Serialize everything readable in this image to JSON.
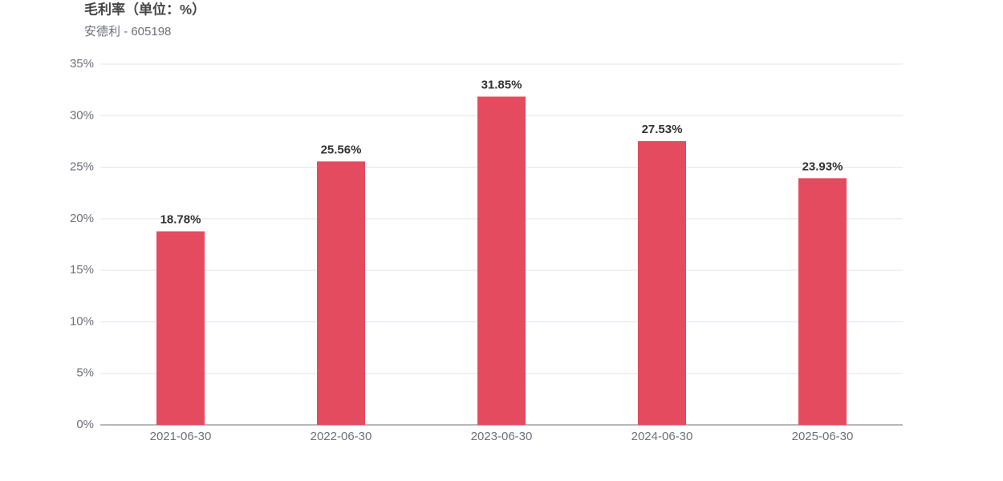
{
  "chart_data": {
    "type": "bar",
    "title": "毛利率（单位：%）",
    "subtitle": "安德利 - 605198",
    "categories": [
      "2021-06-30",
      "2022-06-30",
      "2023-06-30",
      "2024-06-30",
      "2025-06-30"
    ],
    "values": [
      18.78,
      25.56,
      31.85,
      27.53,
      23.93
    ],
    "value_labels": [
      "18.78%",
      "25.56%",
      "31.85%",
      "27.53%",
      "23.93%"
    ],
    "color": "#e54b5e",
    "ylim": [
      0,
      35
    ],
    "yticks": [
      {
        "value": 0,
        "label": "0%"
      },
      {
        "value": 5,
        "label": "5%"
      },
      {
        "value": 10,
        "label": "10%"
      },
      {
        "value": 15,
        "label": "15%"
      },
      {
        "value": 20,
        "label": "20%"
      },
      {
        "value": 25,
        "label": "25%"
      },
      {
        "value": 30,
        "label": "30%"
      },
      {
        "value": 35,
        "label": "35%"
      }
    ],
    "grid": true
  }
}
